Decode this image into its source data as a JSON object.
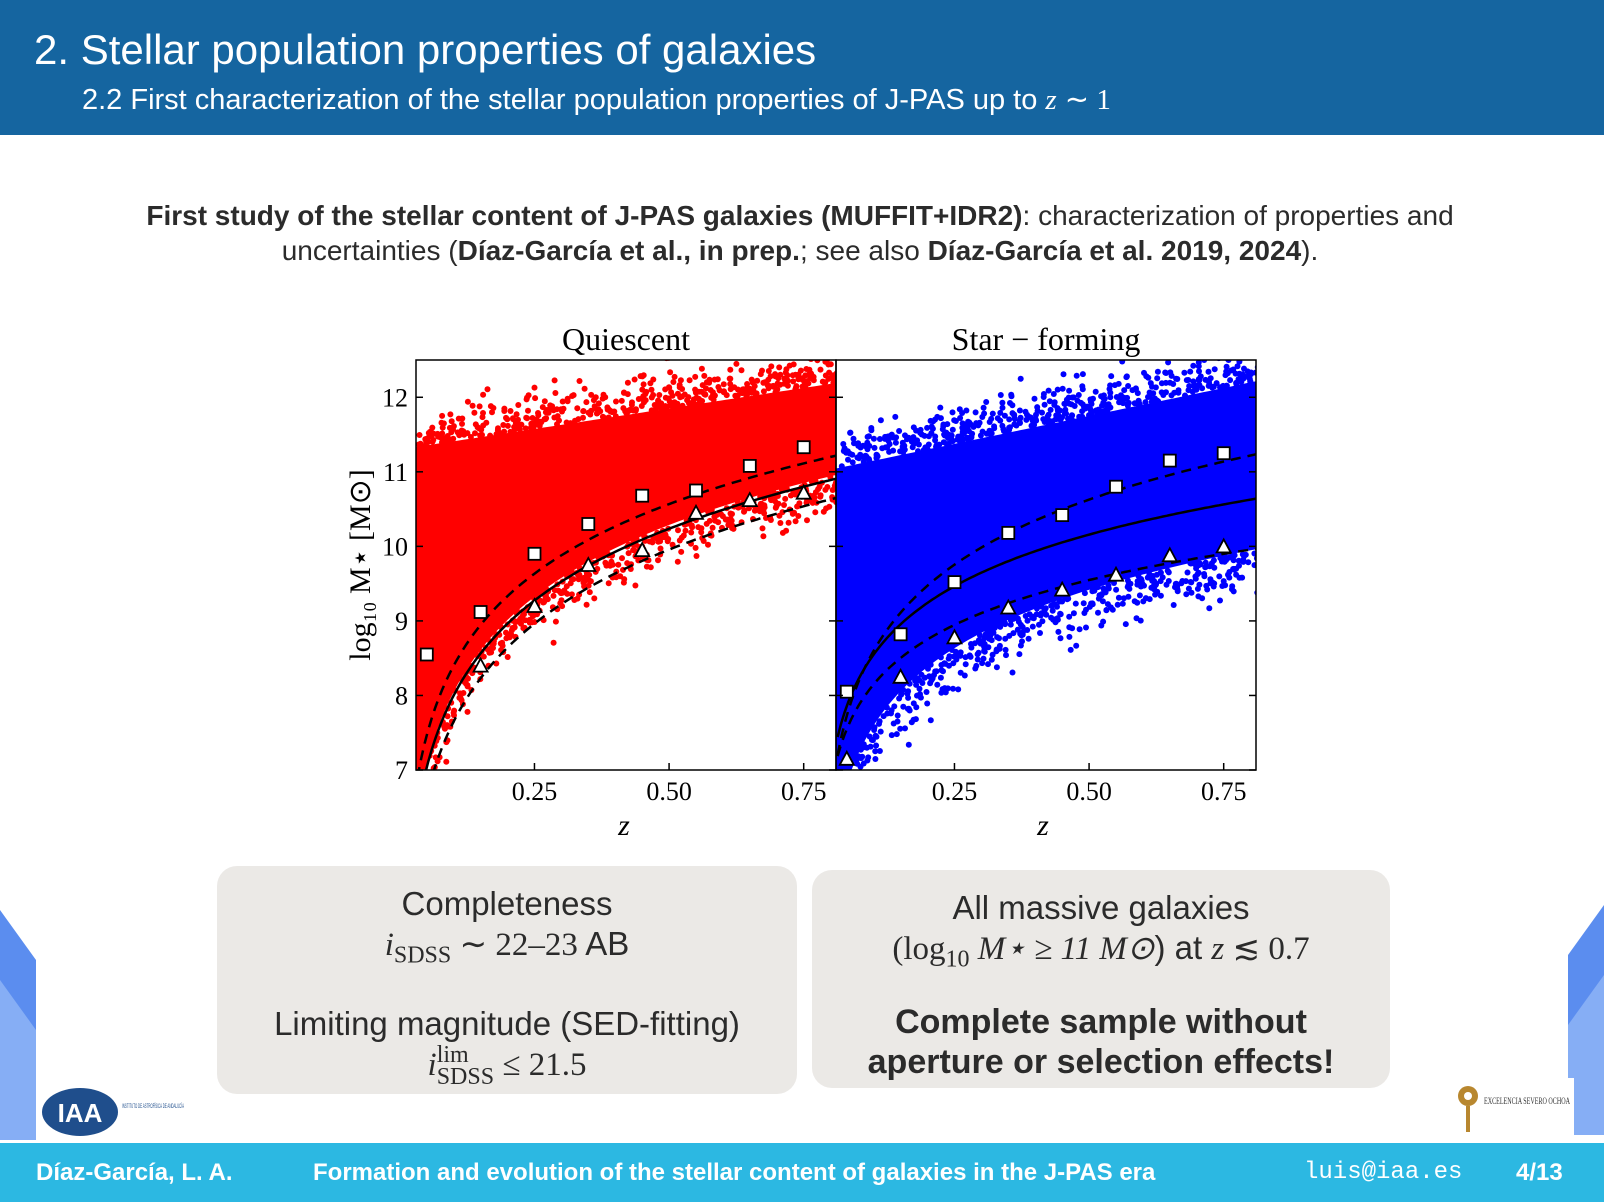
{
  "header": {
    "title": "2. Stellar population properties of galaxies",
    "subtitle_text": "2.2 First characterization of the stellar population properties of J-PAS up to",
    "subtitle_math_var": "z",
    "subtitle_math_rel": "∼ 1"
  },
  "intro": {
    "bold1": "First study of the stellar content of J-PAS galaxies (MUFFIT+IDR2)",
    "text1": ": characterization of properties and uncertainties (",
    "bold2": "Díaz-García et al., in prep.",
    "text2": "; see also ",
    "bold3": "Díaz-García et al. 2019, 2024",
    "text3": ")."
  },
  "figure": {
    "panels": [
      {
        "title": "Quiescent",
        "color": "#ff0000"
      },
      {
        "title": "Star − forming",
        "color": "#0000ff"
      }
    ],
    "ylabel": "log₁₀ M⋆ [M⊙]",
    "xlabel": "z",
    "yticks": [
      "7",
      "8",
      "9",
      "10",
      "11",
      "12"
    ],
    "xticks": [
      "0.25",
      "0.50",
      "0.75"
    ]
  },
  "chart_data": [
    {
      "type": "scatter",
      "title": "Quiescent",
      "xlabel": "z",
      "ylabel": "log10 M⋆ [M⊙]",
      "xlim": [
        0.03,
        0.81
      ],
      "ylim": [
        7,
        12.5
      ],
      "grid": false,
      "series": [
        {
          "name": "",
          "marker": "square",
          "x": [
            0.05,
            0.15,
            0.25,
            0.35,
            0.45,
            0.55,
            0.65,
            0.75
          ],
          "y": [
            8.55,
            9.12,
            9.9,
            10.3,
            10.68,
            10.75,
            11.08,
            11.33
          ]
        },
        {
          "name": "",
          "marker": "triangle",
          "x": [
            0.15,
            0.25,
            0.35,
            0.45,
            0.55,
            0.65,
            0.75
          ],
          "y": [
            8.4,
            9.2,
            9.75,
            9.95,
            10.45,
            10.62,
            10.72
          ]
        }
      ]
    },
    {
      "type": "scatter",
      "title": "Star − forming",
      "xlabel": "z",
      "ylabel": "",
      "xlim": [
        0.03,
        0.81
      ],
      "ylim": [
        7,
        12.5
      ],
      "grid": false,
      "series": [
        {
          "name": "",
          "marker": "square",
          "x": [
            0.05,
            0.15,
            0.25,
            0.35,
            0.45,
            0.55,
            0.65,
            0.75
          ],
          "y": [
            8.05,
            8.82,
            9.52,
            10.18,
            10.42,
            10.8,
            11.15,
            11.25
          ]
        },
        {
          "name": "",
          "marker": "triangle",
          "x": [
            0.05,
            0.15,
            0.25,
            0.35,
            0.45,
            0.55,
            0.65,
            0.75
          ],
          "y": [
            7.15,
            8.25,
            8.78,
            9.18,
            9.42,
            9.62,
            9.88,
            10.0
          ]
        }
      ]
    }
  ],
  "box1": {
    "l1": "Completeness",
    "l2_var": "i",
    "l2_sub": "SDSS",
    "l2_rest": " ∼ 22–23",
    "l2_unit": " AB",
    "l3": "Limiting magnitude (SED-fitting)",
    "l4_var": "i",
    "l4_sup": "lim",
    "l4_sub": "SDSS",
    "l4_rest": " ≤ 21.5"
  },
  "box2": {
    "l1": "All massive galaxies",
    "l2_open": "(log",
    "l2_sub": "10",
    "l2_mid": " M⋆ ≥ 11 M⊙",
    "l2_close": ") at ",
    "l2_z": "z",
    "l2_end": " ≲ 0.7",
    "l3": "Complete sample without",
    "l4": "aperture or selection effects!"
  },
  "logos": {
    "iaa": "IAA",
    "iaa_small": "INSTITUTO DE ASTROFÍSICA DE ANDALUCÍA",
    "severo": "EXCELENCIA SEVERO OCHOA"
  },
  "footer": {
    "author": "Díaz-García, L. A.",
    "talk": "Formation and evolution of the stellar content of galaxies in the J-PAS era",
    "email": "luis@iaa.es",
    "page": "4/13"
  },
  "colors": {
    "header_bg": "#1565a0",
    "footer_bg": "#2cb8e2",
    "quiescent": "#ff0000",
    "starforming": "#0000ff",
    "box_bg": "#ebe9e6"
  }
}
